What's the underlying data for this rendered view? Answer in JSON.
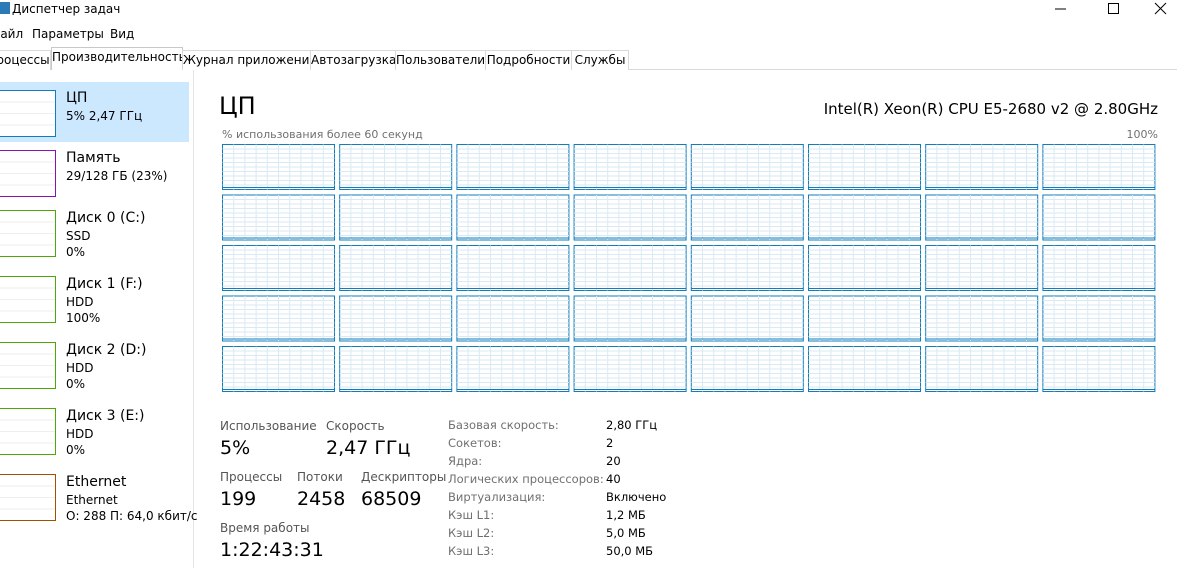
{
  "window": {
    "title": "Диспетчер задач"
  },
  "menu": [
    "Файл",
    "Параметры",
    "Вид"
  ],
  "tabs": [
    "Процессы",
    "Производительность",
    "Журнал приложений",
    "Автозагрузка",
    "Пользователи",
    "Подробности",
    "Службы"
  ],
  "sidebar": [
    {
      "name": "ЦП",
      "lines": [
        "5% 2,47 ГГц"
      ],
      "color": "#117dbb"
    },
    {
      "name": "Память",
      "lines": [
        "29/128 ГБ (23%)"
      ],
      "color": "#8b12ae"
    },
    {
      "name": "Диск 0 (C:)",
      "lines": [
        "SSD",
        "0%"
      ],
      "color": "#4da60c"
    },
    {
      "name": "Диск 1 (F:)",
      "lines": [
        "HDD",
        "100%"
      ],
      "color": "#4da60c"
    },
    {
      "name": "Диск 2 (D:)",
      "lines": [
        "HDD",
        "0%"
      ],
      "color": "#4da60c"
    },
    {
      "name": "Диск 3 (E:)",
      "lines": [
        "HDD",
        "0%"
      ],
      "color": "#4da60c"
    },
    {
      "name": "Ethernet",
      "lines": [
        "Ethernet",
        "О: 288 П: 64,0 кбит/с"
      ],
      "color": "#a74f01"
    }
  ],
  "main": {
    "title": "ЦП",
    "cpu_name": "Intel(R) Xeon(R) CPU E5-2680 v2 @ 2.80GHz",
    "graph_caption": "% использования более 60 секунд",
    "graph_max": "100%",
    "stats": [
      {
        "label": "Использование",
        "value": "5%"
      },
      {
        "label": "Скорость",
        "value": "2,47 ГГц"
      },
      {
        "label": "Процессы",
        "value": "199"
      },
      {
        "label": "Потоки",
        "value": "2458"
      },
      {
        "label": "Дескрипторы",
        "value": "68509"
      },
      {
        "label": "Время работы",
        "value": "1:22:43:31"
      }
    ],
    "details": [
      {
        "label": "Базовая скорость:",
        "value": "2,80 ГГц"
      },
      {
        "label": "Сокетов:",
        "value": "2"
      },
      {
        "label": "Ядра:",
        "value": "20"
      },
      {
        "label": "Логических процессоров:",
        "value": "40"
      },
      {
        "label": "Виртуализация:",
        "value": "Включено"
      },
      {
        "label": "Кэш L1:",
        "value": "1,2 МБ"
      },
      {
        "label": "Кэш L2:",
        "value": "5,0 МБ"
      },
      {
        "label": "Кэш L3:",
        "value": "50,0 МБ"
      }
    ]
  }
}
